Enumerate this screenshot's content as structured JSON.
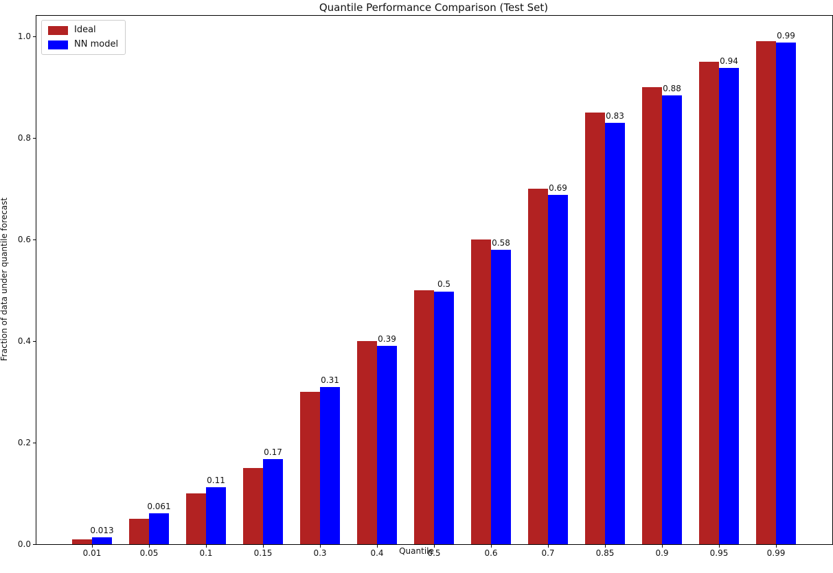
{
  "chart_data": {
    "type": "bar",
    "title": "Quantile Performance Comparison (Test Set)",
    "xlabel": "Quantile",
    "ylabel": "Fraction of data under quantile forecast",
    "categories": [
      "0.01",
      "0.05",
      "0.1",
      "0.15",
      "0.3",
      "0.4",
      "0.5",
      "0.6",
      "0.7",
      "0.85",
      "0.9",
      "0.95",
      "0.99"
    ],
    "series": [
      {
        "name": "Ideal",
        "color": "#b22222",
        "values": [
          0.01,
          0.05,
          0.1,
          0.15,
          0.3,
          0.4,
          0.5,
          0.6,
          0.7,
          0.85,
          0.9,
          0.95,
          0.99
        ]
      },
      {
        "name": "NN model",
        "color": "#0000ff",
        "values": [
          0.013,
          0.061,
          0.112,
          0.168,
          0.31,
          0.391,
          0.498,
          0.58,
          0.688,
          0.83,
          0.884,
          0.938,
          0.988
        ],
        "value_labels": [
          "0.013",
          "0.061",
          "0.11",
          "0.17",
          "0.31",
          "0.39",
          "0.5",
          "0.58",
          "0.69",
          "0.83",
          "0.88",
          "0.94",
          "0.99"
        ]
      }
    ],
    "yticks": [
      "0.0",
      "0.2",
      "0.4",
      "0.6",
      "0.8",
      "1.0"
    ],
    "ylim": [
      0,
      1.04
    ],
    "xlim_groups": [
      -1,
      13
    ],
    "grid": false,
    "legend_position": "upper left",
    "background_color": "#ffffff",
    "spine_color": "#000000"
  }
}
